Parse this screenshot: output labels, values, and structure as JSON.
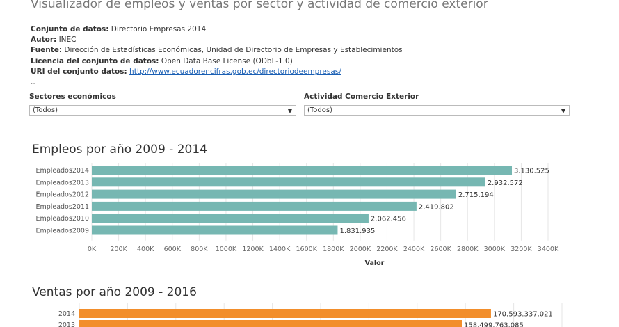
{
  "page": {
    "title": "Visualizador de empleos y ventas por sector y actividad de comercio exterior"
  },
  "metadata": {
    "dataset_label": "Conjunto de datos:",
    "dataset_value": "Directorio Empresas 2014",
    "author_label": "Autor:",
    "author_value": "INEC",
    "source_label": "Fuente:",
    "source_value": "Dirección de Estadísticas Económicas, Unidad de Directorio de Empresas y Establecimientos",
    "license_label": "Licencia del conjunto de datos:",
    "license_value": "Open Data Base License (ODbL-1.0)",
    "uri_label": "URI del conjunto datos:",
    "uri_value": "http://www.ecuadorencifras.gob.ec/directoriodeempresas/",
    "ellipsis": ".."
  },
  "filters": {
    "sectores": {
      "label": "Sectores económicos",
      "value": "(Todos)"
    },
    "actividad": {
      "label": "Actividad Comercio Exterior",
      "value": "(Todos)"
    }
  },
  "colors": {
    "empleos_bar": "#76b7b2",
    "ventas_bar": "#f28e2b",
    "grid": "#e6e6e6"
  },
  "chart_data": [
    {
      "type": "bar",
      "orientation": "horizontal",
      "title": "Empleos por año 2009 - 2014",
      "xlabel": "Valor",
      "categories": [
        "Empleados2014",
        "Empleados2013",
        "Empleados2012",
        "Empleados2011",
        "Empleados2010",
        "Empleados2009"
      ],
      "values": [
        3130525,
        2932572,
        2715194,
        2419802,
        2062456,
        1831935
      ],
      "value_labels": [
        "3.130.525",
        "2.932.572",
        "2.715.194",
        "2.419.802",
        "2.062.456",
        "1.831.935"
      ],
      "xlim": [
        0,
        3400000
      ],
      "xticks": [
        0,
        200000,
        400000,
        600000,
        800000,
        1000000,
        1200000,
        1400000,
        1600000,
        1800000,
        2000000,
        2200000,
        2400000,
        2600000,
        2800000,
        3000000,
        3200000,
        3400000
      ],
      "xtick_labels": [
        "0K",
        "200K",
        "400K",
        "600K",
        "800K",
        "1000K",
        "1200K",
        "1400K",
        "1600K",
        "1800K",
        "2000K",
        "2200K",
        "2400K",
        "2600K",
        "2800K",
        "3000K",
        "3200K",
        "3400K"
      ],
      "grid": true
    },
    {
      "type": "bar",
      "orientation": "horizontal",
      "title": "Ventas por año 2009 - 2016",
      "categories": [
        "2014",
        "2013"
      ],
      "values": [
        170593337021,
        158499763085
      ],
      "value_labels": [
        "170.593.337.021",
        "158.499.763.085"
      ],
      "xlim": [
        0,
        200000000000
      ],
      "grid": true
    }
  ]
}
